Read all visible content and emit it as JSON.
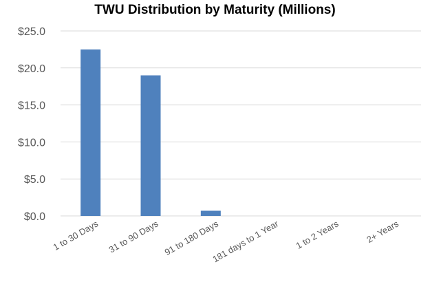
{
  "chart_data": {
    "type": "bar",
    "title": "TWU Distribution by Maturity (Millions)",
    "xlabel": "",
    "ylabel": "",
    "categories": [
      "1 to 30 Days",
      "31 to 90 Days",
      "91 to 180 Days",
      "181 days to 1 Year",
      "1 to 2 Years",
      "2+ Years"
    ],
    "values": [
      22.5,
      19.0,
      0.7,
      0,
      0,
      0
    ],
    "ylim": [
      0,
      25
    ],
    "yticks": [
      0,
      5,
      10,
      15,
      20,
      25
    ],
    "ytick_labels": [
      "$0.0",
      "$5.0",
      "$10.0",
      "$15.0",
      "$20.0",
      "$25.0"
    ],
    "grid": true,
    "legend": "none",
    "bar_color": "#4f81bd",
    "grid_color": "#d9d9d9"
  }
}
